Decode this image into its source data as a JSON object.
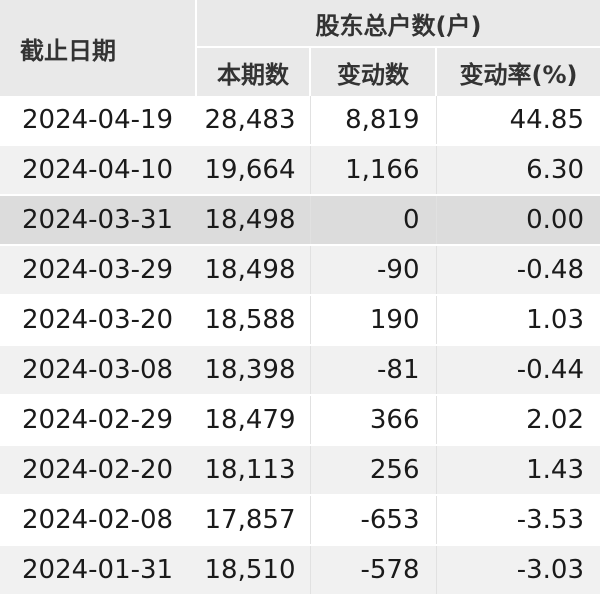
{
  "table": {
    "header": {
      "date": "截止日期",
      "group": "股东总户数(户)",
      "current": "本期数",
      "change": "变动数",
      "rate": "变动率(%)"
    },
    "rows": [
      {
        "date": "2024-04-19",
        "current": "28,483",
        "change": "8,819",
        "rate": "44.85"
      },
      {
        "date": "2024-04-10",
        "current": "19,664",
        "change": "1,166",
        "rate": "6.30"
      },
      {
        "date": "2024-03-31",
        "current": "18,498",
        "change": "0",
        "rate": "0.00"
      },
      {
        "date": "2024-03-29",
        "current": "18,498",
        "change": "-90",
        "rate": "-0.48"
      },
      {
        "date": "2024-03-20",
        "current": "18,588",
        "change": "190",
        "rate": "1.03"
      },
      {
        "date": "2024-03-08",
        "current": "18,398",
        "change": "-81",
        "rate": "-0.44"
      },
      {
        "date": "2024-02-29",
        "current": "18,479",
        "change": "366",
        "rate": "2.02"
      },
      {
        "date": "2024-02-20",
        "current": "18,113",
        "change": "256",
        "rate": "1.43"
      },
      {
        "date": "2024-02-08",
        "current": "17,857",
        "change": "-653",
        "rate": "-3.53"
      },
      {
        "date": "2024-01-31",
        "current": "18,510",
        "change": "-578",
        "rate": "-3.03"
      }
    ]
  }
}
